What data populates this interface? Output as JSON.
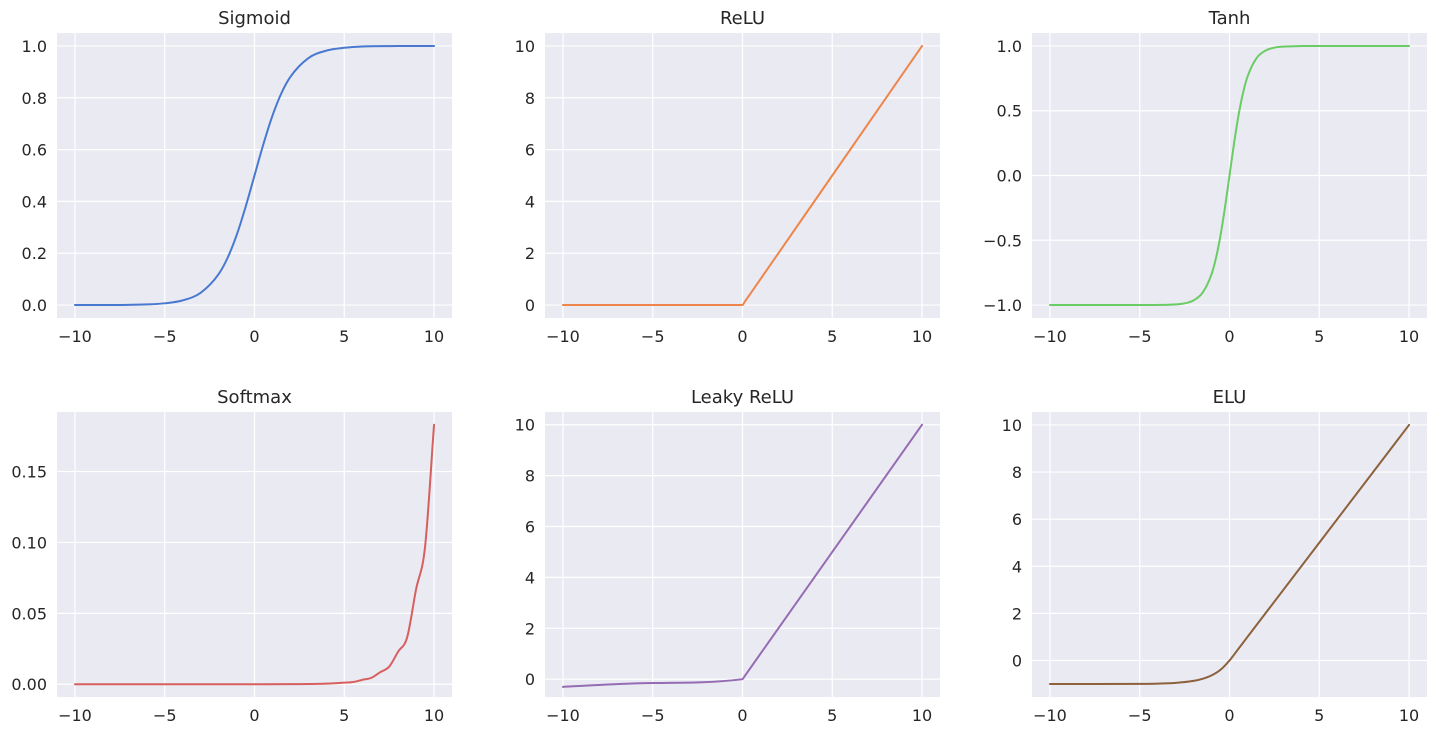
{
  "chart_data": [
    {
      "type": "line",
      "title": "Sigmoid",
      "xlabel": "",
      "ylabel": "",
      "xlim": [
        -11,
        11
      ],
      "ylim": [
        -0.05,
        1.05
      ],
      "xticks": [
        -10,
        -5,
        0,
        5,
        10
      ],
      "xtick_labels": [
        "−10",
        "−5",
        "0",
        "5",
        "10"
      ],
      "yticks": [
        0.0,
        0.2,
        0.4,
        0.6,
        0.8,
        1.0
      ],
      "ytick_labels": [
        "0.0",
        "0.2",
        "0.4",
        "0.6",
        "0.8",
        "1.0"
      ],
      "grid": true,
      "color": "#4878cf",
      "series": [
        {
          "x": [
            -10,
            -8,
            -6,
            -5,
            -4,
            -3,
            -2,
            -1.5,
            -1,
            -0.5,
            0,
            0.5,
            1,
            1.5,
            2,
            3,
            4,
            5,
            6,
            8,
            10
          ],
          "y": [
            4.54e-05,
            0.000335,
            0.00247,
            0.00669,
            0.018,
            0.0474,
            0.119,
            0.182,
            0.269,
            0.378,
            0.5,
            0.622,
            0.731,
            0.818,
            0.881,
            0.953,
            0.982,
            0.993,
            0.998,
            0.99966,
            0.99995
          ]
        }
      ]
    },
    {
      "type": "line",
      "title": "ReLU",
      "xlabel": "",
      "ylabel": "",
      "xlim": [
        -11,
        11
      ],
      "ylim": [
        -0.5,
        10.5
      ],
      "xticks": [
        -10,
        -5,
        0,
        5,
        10
      ],
      "xtick_labels": [
        "−10",
        "−5",
        "0",
        "5",
        "10"
      ],
      "yticks": [
        0,
        2,
        4,
        6,
        8,
        10
      ],
      "ytick_labels": [
        "0",
        "2",
        "4",
        "6",
        "8",
        "10"
      ],
      "grid": true,
      "color": "#ee854a",
      "series": [
        {
          "x": [
            -10,
            -5,
            0,
            0.1,
            5,
            10
          ],
          "y": [
            0,
            0,
            0,
            0.1,
            5,
            10
          ]
        }
      ]
    },
    {
      "type": "line",
      "title": "Tanh",
      "xlabel": "",
      "ylabel": "",
      "xlim": [
        -11,
        11
      ],
      "ylim": [
        -1.1,
        1.1
      ],
      "xticks": [
        -10,
        -5,
        0,
        5,
        10
      ],
      "xtick_labels": [
        "−10",
        "−5",
        "0",
        "5",
        "10"
      ],
      "yticks": [
        -1.0,
        -0.5,
        0.0,
        0.5,
        1.0
      ],
      "ytick_labels": [
        "−1.0",
        "−0.5",
        "0.0",
        "0.5",
        "1.0"
      ],
      "grid": true,
      "color": "#6acc64",
      "series": [
        {
          "x": [
            -10,
            -5,
            -4,
            -3,
            -2.5,
            -2,
            -1.5,
            -1,
            -0.75,
            -0.5,
            -0.25,
            0,
            0.25,
            0.5,
            0.75,
            1,
            1.5,
            2,
            2.5,
            3,
            4,
            5,
            10
          ],
          "y": [
            -1,
            -0.9999,
            -0.9993,
            -0.995,
            -0.987,
            -0.964,
            -0.905,
            -0.762,
            -0.635,
            -0.462,
            -0.245,
            0,
            0.245,
            0.462,
            0.635,
            0.762,
            0.905,
            0.964,
            0.987,
            0.995,
            0.9993,
            0.9999,
            1
          ]
        }
      ]
    },
    {
      "type": "line",
      "title": "Softmax",
      "xlabel": "",
      "ylabel": "",
      "xlim": [
        -11,
        11
      ],
      "ylim": [
        -0.009,
        0.192
      ],
      "xticks": [
        -10,
        -5,
        0,
        5,
        10
      ],
      "xtick_labels": [
        "−10",
        "−5",
        "0",
        "5",
        "10"
      ],
      "yticks": [
        0.0,
        0.05,
        0.1,
        0.15
      ],
      "ytick_labels": [
        "0.00",
        "0.05",
        "0.10",
        "0.15"
      ],
      "grid": true,
      "color": "#d65f5f",
      "series": [
        {
          "x": [
            -10,
            -5,
            0,
            2,
            3,
            4,
            5,
            5.5,
            6,
            6.5,
            7,
            7.5,
            8,
            8.5,
            9,
            9.5,
            10
          ],
          "y": [
            0,
            0,
            7e-06,
            5e-05,
            0.00015,
            0.0004,
            0.0011,
            0.0016,
            0.0031,
            0.0045,
            0.0085,
            0.0124,
            0.023,
            0.033,
            0.067,
            0.097,
            0.183
          ]
        }
      ]
    },
    {
      "type": "line",
      "title": "Leaky ReLU",
      "xlabel": "",
      "ylabel": "",
      "xlim": [
        -11,
        11
      ],
      "ylim": [
        -0.7,
        10.5
      ],
      "xticks": [
        -10,
        -5,
        0,
        5,
        10
      ],
      "xtick_labels": [
        "−10",
        "−5",
        "0",
        "5",
        "10"
      ],
      "yticks": [
        0,
        2,
        4,
        6,
        8,
        10
      ],
      "ytick_labels": [
        "0",
        "2",
        "4",
        "6",
        "8",
        "10"
      ],
      "grid": true,
      "color": "#956cb4",
      "series": [
        {
          "x": [
            -10,
            -5,
            0,
            0.1,
            5,
            10
          ],
          "y": [
            -0.3,
            -0.15,
            0,
            0.1,
            5,
            10
          ]
        }
      ]
    },
    {
      "type": "line",
      "title": "ELU",
      "xlabel": "",
      "ylabel": "",
      "xlim": [
        -11,
        11
      ],
      "ylim": [
        -1.55,
        10.55
      ],
      "xticks": [
        -10,
        -5,
        0,
        5,
        10
      ],
      "xtick_labels": [
        "−10",
        "−5",
        "0",
        "5",
        "10"
      ],
      "yticks": [
        0,
        2,
        4,
        6,
        8,
        10
      ],
      "ytick_labels": [
        "0",
        "2",
        "4",
        "6",
        "8",
        "10"
      ],
      "grid": true,
      "color": "#8c613c",
      "series": [
        {
          "x": [
            -10,
            -5,
            -4,
            -3,
            -2,
            -1.5,
            -1,
            -0.5,
            0,
            0.5,
            1,
            2,
            5,
            10
          ],
          "y": [
            -1,
            -0.993,
            -0.982,
            -0.95,
            -0.865,
            -0.777,
            -0.632,
            -0.393,
            0,
            0.5,
            1,
            2,
            5,
            10
          ]
        }
      ]
    }
  ]
}
